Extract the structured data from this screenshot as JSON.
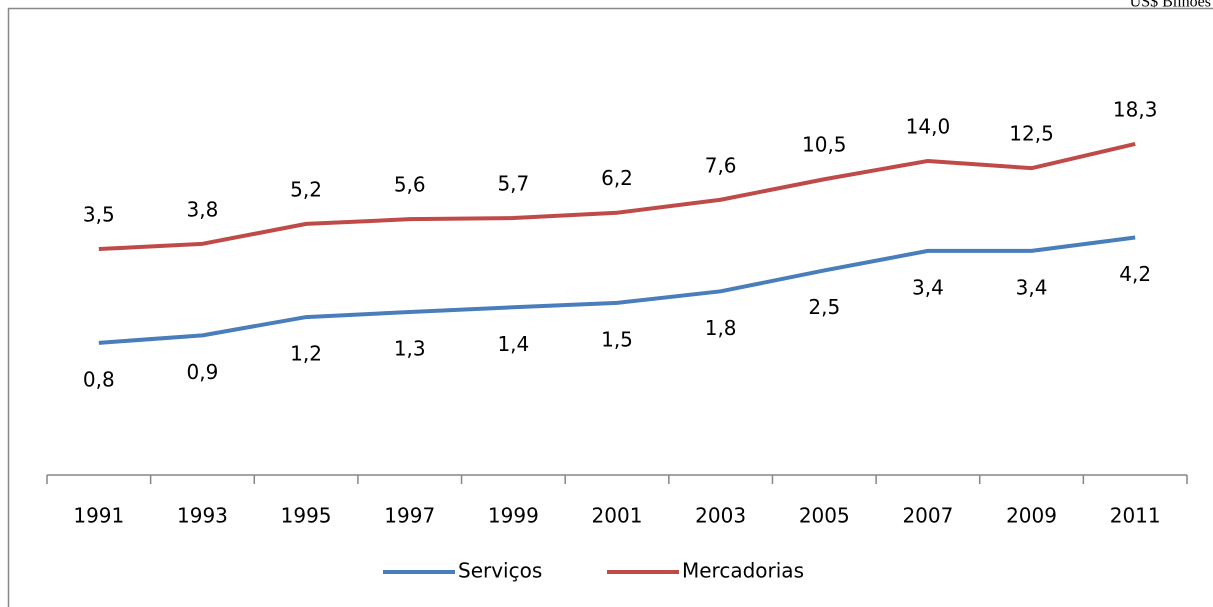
{
  "chart_data": {
    "type": "line",
    "unit": "US$ Bilhões",
    "categories": [
      "1991",
      "1993",
      "1995",
      "1997",
      "1999",
      "2001",
      "2003",
      "2005",
      "2007",
      "2009",
      "2011"
    ],
    "series": [
      {
        "name": "Serviços",
        "color": "#4a7ebb",
        "values": [
          0.8,
          0.9,
          1.2,
          1.3,
          1.4,
          1.5,
          1.8,
          2.5,
          3.4,
          3.4,
          4.2
        ],
        "value_labels": [
          "0,8",
          "0,9",
          "1,2",
          "1,3",
          "1,4",
          "1,5",
          "1,8",
          "2,5",
          "3,4",
          "3,4",
          "4,2"
        ]
      },
      {
        "name": "Mercadorias",
        "color": "#be4b48",
        "values": [
          3.5,
          3.8,
          5.2,
          5.6,
          5.7,
          6.2,
          7.6,
          10.5,
          14.0,
          12.5,
          18.3
        ],
        "value_labels": [
          "3,5",
          "3,8",
          "5,2",
          "5,6",
          "5,7",
          "6,2",
          "7,6",
          "10,5",
          "14,0",
          "12,5",
          "18,3"
        ]
      }
    ],
    "ylim": [
      0.1,
      100
    ],
    "log_scale": true,
    "grid": false,
    "legend": "bottom"
  }
}
